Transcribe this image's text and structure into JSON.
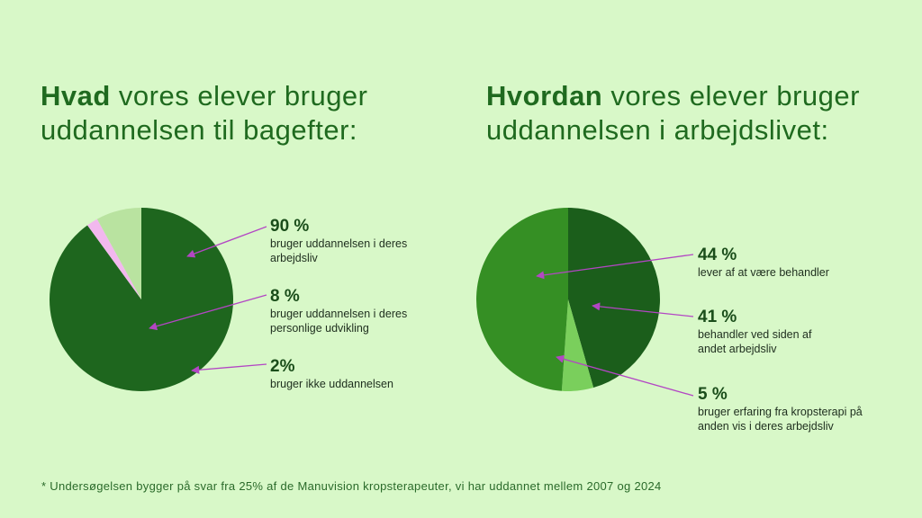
{
  "left_title": {
    "bold": "Hvad",
    "line1_rest": " vores elever bruger",
    "line2": "uddannelsen til bagefter:"
  },
  "right_title": {
    "bold": "Hvordan",
    "line1_rest": " vores elever bruger",
    "line2": "uddannelsen i arbejdslivet:"
  },
  "chart_data": [
    {
      "type": "pie",
      "slices": [
        {
          "label": "bruger uddannelsen i deres arbejdsliv",
          "value": 90,
          "value_text": "90 %",
          "color": "#1e661e"
        },
        {
          "label": "bruger ikke uddannelsen",
          "value": 2,
          "value_text": "2%",
          "color": "#f2b8ee"
        },
        {
          "label": "bruger uddannelsen i deres personlige udvikling",
          "value": 8,
          "value_text": "8 %",
          "color": "#b9e3a0"
        }
      ]
    },
    {
      "type": "pie",
      "slices": [
        {
          "label": "behandler ved siden af andet arbejdsliv",
          "value": 41,
          "value_text": "41 %",
          "color": "#1b5e1b"
        },
        {
          "label": "bruger erfaring fra kropsterapi på anden vis i deres arbejdsliv",
          "value": 5,
          "value_text": "5 %",
          "color": "#7acf5c"
        },
        {
          "label": "lever af at være behandler",
          "value": 44,
          "value_text": "44 %",
          "color": "#358f24"
        }
      ]
    }
  ],
  "colors": {
    "background": "#d8f8c8",
    "title": "#1f6a1f",
    "arrow": "#b346c4"
  },
  "footnote": "* Undersøgelsen bygger på svar fra 25% af de Manuvision kropsterapeuter, vi har uddannet mellem 2007 og 2024"
}
